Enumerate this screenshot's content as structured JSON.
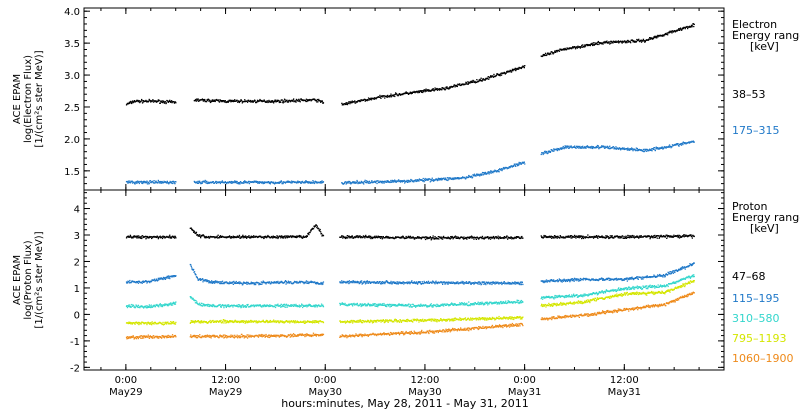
{
  "chart_data": [
    {
      "type": "scatter",
      "ylabel_lines": [
        "ACE EPAM",
        "log(Electron Flux)",
        "[1/(cm²s ster MeV)]"
      ],
      "legend_title_lines": [
        "Electron",
        "Energy ranges",
        "[keV]"
      ],
      "ylim": [
        1.2,
        4.05
      ],
      "yticks": [
        1.5,
        2.0,
        2.5,
        3.0,
        3.5,
        4.0
      ],
      "ytick_labels": [
        "1.5",
        "2.0",
        "2.5",
        "3.0",
        "3.5",
        "4.0"
      ],
      "series": [
        {
          "name": "38–53",
          "color": "#000000",
          "segments": [
            {
              "t": [
                0.0,
                0.04,
                0.15,
                0.25
              ],
              "y": [
                2.55,
                2.6,
                2.6,
                2.58
              ]
            },
            {
              "t": [
                0.34,
                0.5,
                0.75,
                0.95,
                0.99
              ],
              "y": [
                2.62,
                2.6,
                2.6,
                2.62,
                2.58
              ]
            },
            {
              "t": [
                1.08,
                1.3,
                1.6,
                1.8,
                2.0
              ],
              "y": [
                2.55,
                2.68,
                2.8,
                2.95,
                3.15
              ]
            },
            {
              "t": [
                2.08,
                2.2,
                2.4,
                2.6,
                2.7,
                2.85
              ],
              "y": [
                3.3,
                3.42,
                3.52,
                3.55,
                3.65,
                3.8
              ]
            }
          ]
        },
        {
          "name": "175–315",
          "color": "#1f78c8",
          "segments": [
            {
              "t": [
                0.0,
                0.15,
                0.25
              ],
              "y": [
                1.33,
                1.33,
                1.33
              ]
            },
            {
              "t": [
                0.34,
                0.6,
                0.99
              ],
              "y": [
                1.33,
                1.33,
                1.33
              ]
            },
            {
              "t": [
                1.08,
                1.4,
                1.7,
                1.85,
                2.0
              ],
              "y": [
                1.32,
                1.35,
                1.4,
                1.5,
                1.65
              ]
            },
            {
              "t": [
                2.08,
                2.2,
                2.4,
                2.6,
                2.7,
                2.85
              ],
              "y": [
                1.78,
                1.88,
                1.88,
                1.83,
                1.88,
                1.97
              ]
            }
          ]
        }
      ]
    },
    {
      "type": "scatter",
      "ylabel_lines": [
        "ACE EPAM",
        "log(Proton Flux)",
        "[1/(cm²s ster MeV)]"
      ],
      "legend_title_lines": [
        "Proton",
        "Energy ranges",
        "[keV]"
      ],
      "ylim": [
        -2.1,
        4.7
      ],
      "yticks": [
        -2,
        -1,
        0,
        1,
        2,
        3,
        4
      ],
      "ytick_labels": [
        "-2",
        "-1",
        "0",
        "1",
        "2",
        "3",
        "4"
      ],
      "series": [
        {
          "name": "47–68",
          "color": "#000000",
          "segments": [
            {
              "t": [
                0.0,
                0.25
              ],
              "y": [
                2.95,
                2.95
              ]
            },
            {
              "t": [
                0.32,
                0.36,
                0.4,
                0.6,
                0.9,
                0.95,
                0.99
              ],
              "y": [
                3.3,
                3.0,
                2.95,
                2.95,
                2.95,
                3.4,
                2.95
              ]
            },
            {
              "t": [
                1.07,
                1.2,
                1.5,
                1.99
              ],
              "y": [
                2.95,
                2.95,
                2.92,
                2.92
              ]
            },
            {
              "t": [
                2.08,
                2.5,
                2.85
              ],
              "y": [
                2.95,
                2.95,
                2.98
              ]
            }
          ]
        },
        {
          "name": "115–195",
          "color": "#1f78c8",
          "segments": [
            {
              "t": [
                0.0,
                0.1,
                0.25
              ],
              "y": [
                1.25,
                1.25,
                1.5
              ]
            },
            {
              "t": [
                0.32,
                0.36,
                0.42,
                0.6,
                0.9,
                0.99
              ],
              "y": [
                1.9,
                1.35,
                1.25,
                1.2,
                1.25,
                1.2
              ]
            },
            {
              "t": [
                1.07,
                1.5,
                1.99
              ],
              "y": [
                1.25,
                1.22,
                1.2
              ]
            },
            {
              "t": [
                2.08,
                2.3,
                2.5,
                2.7,
                2.85
              ],
              "y": [
                1.28,
                1.35,
                1.35,
                1.5,
                1.95
              ]
            }
          ]
        },
        {
          "name": "310–580",
          "color": "#33d6cc",
          "segments": [
            {
              "t": [
                0.0,
                0.1,
                0.25
              ],
              "y": [
                0.35,
                0.3,
                0.45
              ]
            },
            {
              "t": [
                0.32,
                0.36,
                0.42,
                0.6,
                0.9,
                0.99
              ],
              "y": [
                0.7,
                0.4,
                0.35,
                0.35,
                0.35,
                0.35
              ]
            },
            {
              "t": [
                1.07,
                1.5,
                1.99
              ],
              "y": [
                0.4,
                0.35,
                0.5
              ]
            },
            {
              "t": [
                2.08,
                2.3,
                2.5,
                2.7,
                2.85
              ],
              "y": [
                0.65,
                0.75,
                1.0,
                1.1,
                1.5
              ]
            }
          ]
        },
        {
          "name": "795–1193",
          "color": "#d4e600",
          "segments": [
            {
              "t": [
                0.0,
                0.25
              ],
              "y": [
                -0.3,
                -0.3
              ]
            },
            {
              "t": [
                0.32,
                0.6,
                0.99
              ],
              "y": [
                -0.25,
                -0.25,
                -0.25
              ]
            },
            {
              "t": [
                1.07,
                1.5,
                1.99
              ],
              "y": [
                -0.25,
                -0.2,
                -0.1
              ]
            },
            {
              "t": [
                2.08,
                2.3,
                2.5,
                2.7,
                2.85
              ],
              "y": [
                0.35,
                0.5,
                0.8,
                0.85,
                1.3
              ]
            }
          ]
        },
        {
          "name": "1060–1900",
          "color": "#ee8a1a",
          "segments": [
            {
              "t": [
                0.0,
                0.25
              ],
              "y": [
                -0.85,
                -0.8
              ]
            },
            {
              "t": [
                0.32,
                0.6,
                0.99
              ],
              "y": [
                -0.8,
                -0.8,
                -0.75
              ]
            },
            {
              "t": [
                1.07,
                1.5,
                1.99
              ],
              "y": [
                -0.8,
                -0.65,
                -0.35
              ]
            },
            {
              "t": [
                2.08,
                2.3,
                2.5,
                2.7,
                2.85
              ],
              "y": [
                -0.15,
                0.0,
                0.2,
                0.4,
                0.85
              ]
            }
          ]
        }
      ]
    }
  ],
  "x_axis": {
    "xlabel": "hours:minutes, May 28, 2011 - May 31, 2011",
    "xlim_days": [
      -0.21,
      3.0
    ],
    "ticks": [
      {
        "t": 0.0,
        "time": "0:00",
        "date": "May29"
      },
      {
        "t": 0.5,
        "time": "12:00",
        "date": "May29"
      },
      {
        "t": 1.0,
        "time": "0:00",
        "date": "May30"
      },
      {
        "t": 1.5,
        "time": "12:00",
        "date": "May30"
      },
      {
        "t": 2.0,
        "time": "0:00",
        "date": "May31"
      },
      {
        "t": 2.5,
        "time": "12:00",
        "date": "May31"
      }
    ],
    "minor_step_days": 0.125
  }
}
